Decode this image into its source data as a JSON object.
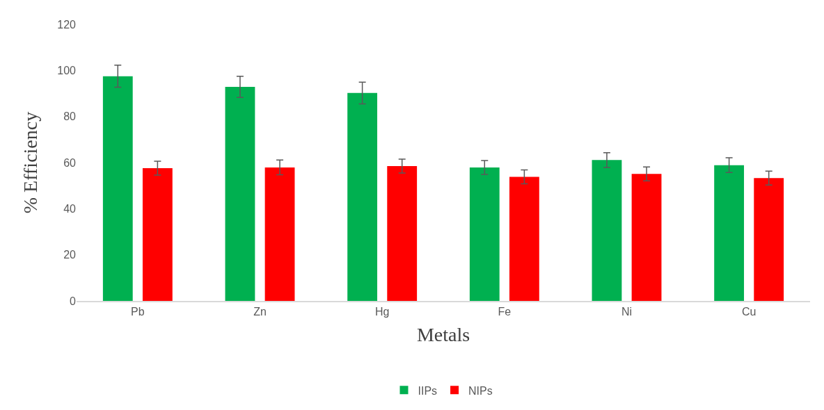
{
  "chart_data": {
    "type": "bar",
    "xlabel": "Metals",
    "ylabel": "% Efficiency",
    "categories": [
      "Pb",
      "Zn",
      "Hg",
      "Fe",
      "Ni",
      "Cu"
    ],
    "series": [
      {
        "name": "IIPs",
        "color": "#00b050",
        "values": [
          97.5,
          92.9,
          90.2,
          57.9,
          61.1,
          58.9
        ],
        "errors": [
          4.8,
          4.6,
          4.7,
          3,
          3.2,
          3.2
        ]
      },
      {
        "name": "NIPs",
        "color": "#ff0000",
        "values": [
          57.6,
          57.9,
          58.5,
          53.8,
          55.1,
          53.3
        ],
        "errors": [
          3,
          3.2,
          3,
          3,
          3,
          3
        ]
      }
    ],
    "ylim": [
      0,
      120
    ],
    "yticks": [
      0,
      20,
      40,
      60,
      80,
      100,
      120
    ],
    "legend": "bottom"
  }
}
